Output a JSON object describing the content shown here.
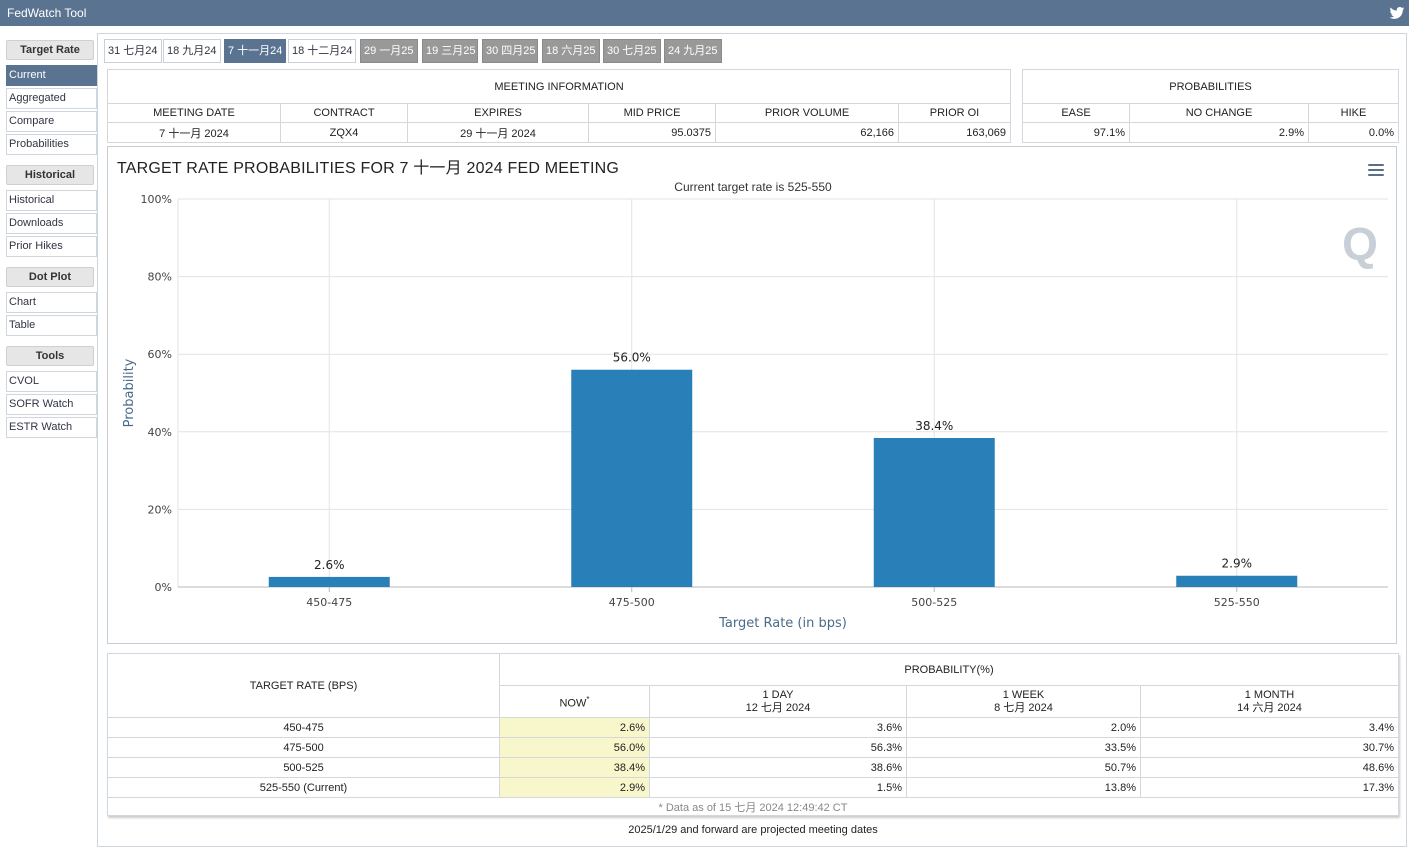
{
  "app": {
    "title": "FedWatch Tool"
  },
  "sidebar": {
    "sections": [
      {
        "heading": "Target Rate",
        "items": [
          "Current",
          "Aggregated",
          "Compare",
          "Probabilities"
        ]
      },
      {
        "heading": "Historical",
        "items": [
          "Historical",
          "Downloads",
          "Prior Hikes"
        ]
      },
      {
        "heading": "Dot Plot",
        "items": [
          "Chart",
          "Table"
        ]
      },
      {
        "heading": "Tools",
        "items": [
          "CVOL",
          "SOFR Watch",
          "ESTR Watch"
        ]
      }
    ],
    "active_item": "Current"
  },
  "tabs": [
    "31 七月24",
    "18 九月24",
    "7 十一月24",
    "18 十二月24",
    "29 一月25",
    "19 三月25",
    "30 四月25",
    "18 六月25",
    "30 七月25",
    "24 九月25"
  ],
  "meeting_info": {
    "caption": "MEETING INFORMATION",
    "headers": [
      "MEETING DATE",
      "CONTRACT",
      "EXPIRES",
      "MID PRICE",
      "PRIOR VOLUME",
      "PRIOR OI"
    ],
    "values": [
      "7 十一月 2024",
      "ZQX4",
      "29 十一月 2024",
      "95.0375",
      "62,166",
      "163,069"
    ]
  },
  "probabilities": {
    "caption": "PROBABILITIES",
    "headers": [
      "EASE",
      "NO CHANGE",
      "HIKE"
    ],
    "values": [
      "97.1%",
      "2.9%",
      "0.0%"
    ]
  },
  "chart": {
    "title": "TARGET RATE PROBABILITIES FOR 7 十一月 2024 FED MEETING",
    "subtitle": "Current target rate is 525-550",
    "watermark": "Q"
  },
  "chart_data": {
    "type": "bar",
    "title": "TARGET RATE PROBABILITIES FOR 7 十一月 2024 FED MEETING",
    "subtitle": "Current target rate is 525-550",
    "categories": [
      "450-475",
      "475-500",
      "500-525",
      "525-550"
    ],
    "values": [
      2.6,
      56.0,
      38.4,
      2.9
    ],
    "data_labels": [
      "2.6%",
      "56.0%",
      "38.4%",
      "2.9%"
    ],
    "xlabel": "Target Rate (in bps)",
    "ylabel": "Probability",
    "ylim": [
      0,
      100
    ],
    "yticks": [
      "0%",
      "20%",
      "40%",
      "60%",
      "80%",
      "100%"
    ],
    "grid": true,
    "bar_color": "#2980b9"
  },
  "prob_table": {
    "col_target": "TARGET RATE (BPS)",
    "col_prob": "PROBABILITY(%)",
    "sub_headers": [
      {
        "line1": "NOW",
        "line2": ""
      },
      {
        "line1": "1 DAY",
        "line2": "12 七月 2024"
      },
      {
        "line1": "1 WEEK",
        "line2": "8 七月 2024"
      },
      {
        "line1": "1 MONTH",
        "line2": "14 六月 2024"
      }
    ],
    "rows": [
      {
        "rate": "450-475",
        "now": "2.6%",
        "day": "3.6%",
        "week": "2.0%",
        "month": "3.4%"
      },
      {
        "rate": "475-500",
        "now": "56.0%",
        "day": "56.3%",
        "week": "33.5%",
        "month": "30.7%"
      },
      {
        "rate": "500-525",
        "now": "38.4%",
        "day": "38.6%",
        "week": "50.7%",
        "month": "48.6%"
      },
      {
        "rate": "525-550 (Current)",
        "now": "2.9%",
        "day": "1.5%",
        "week": "13.8%",
        "month": "17.3%"
      }
    ],
    "data_as_of": "* Data as of 15 七月 2024 12:49:42 CT"
  },
  "footnote": "2025/1/29 and forward are projected meeting dates"
}
